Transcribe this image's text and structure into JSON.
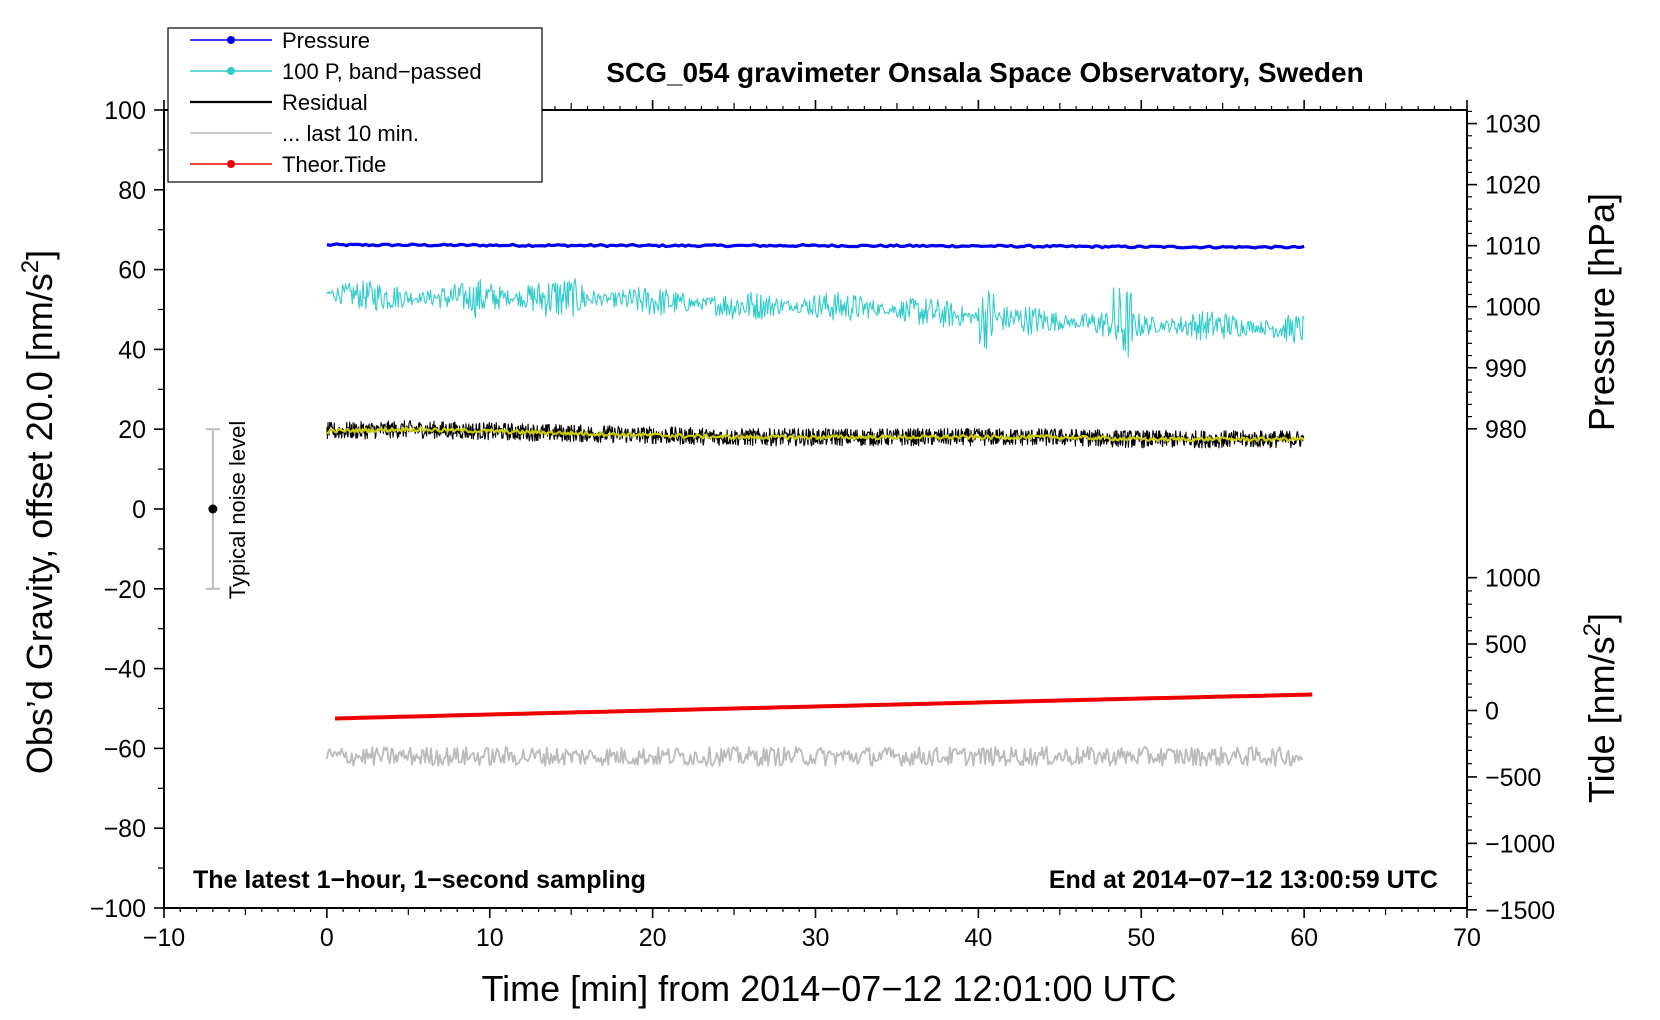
{
  "chart_data": {
    "type": "line",
    "title": "SCG_054 gravimeter Onsala Space Observatory, Sweden",
    "xlabel": "Time [min] from 2014−07−12 12:01:00 UTC",
    "ylabel": "Obs’d Gravity, offset 20.0 [nm/s²]",
    "ylabel_main": "Obs’d Gravity, offset 20.0 [nm/s",
    "ylabel_sup": "2",
    "ylabel_close": "]",
    "xlim": [
      -10,
      70
    ],
    "ylim": [
      -100,
      100
    ],
    "x_ticks": [
      "−10",
      "0",
      "10",
      "20",
      "30",
      "40",
      "50",
      "60",
      "70"
    ],
    "y_ticks": [
      "−100",
      "−80",
      "−60",
      "−40",
      "−20",
      "0",
      "20",
      "40",
      "60",
      "80",
      "100"
    ],
    "pressure_axis": {
      "label": "Pressure [hPa]",
      "ticks": [
        "980",
        "990",
        "1000",
        "1010",
        "1020",
        "1030"
      ],
      "tick_values": [
        980,
        990,
        1000,
        1010,
        1020,
        1030
      ],
      "ref_pressure": 1010,
      "ref_gravity": 66,
      "gravity_per_hpa": 1.53
    },
    "tide_axis": {
      "label": "Tide [nm/s²]",
      "label_main": "Tide [nm/s",
      "label_sup": "2",
      "label_close": "]",
      "ticks": [
        "−1500",
        "−1000",
        "−500",
        "0",
        "500",
        "1000"
      ],
      "tick_values": [
        -1500,
        -1000,
        -500,
        0,
        500,
        1000
      ],
      "ref_tide": 0,
      "ref_gravity": -50.5,
      "gravity_per_nms2": 0.0333
    },
    "legend": {
      "position": "top-left",
      "entries": [
        {
          "label": "Pressure",
          "color": "#0000ee",
          "marker": true
        },
        {
          "label": "100 P, band−passed",
          "color": "#33cccc",
          "marker": true
        },
        {
          "label": "Residual",
          "color": "#000000",
          "marker": false
        },
        {
          "label": "... last 10 min.",
          "color": "#bbbbbb",
          "marker": false
        },
        {
          "label": "Theor.Tide",
          "color": "#ee0000",
          "marker": true
        }
      ]
    },
    "series": [
      {
        "name": "Pressure",
        "color": "#0000ee",
        "x": [
          0,
          10,
          20,
          30,
          40,
          50,
          60
        ],
        "values": [
          66.2,
          66.1,
          66.0,
          66.0,
          65.9,
          65.7,
          65.6
        ]
      },
      {
        "name": "100 P, band−passed",
        "color": "#33cccc",
        "x": [
          0,
          5,
          10,
          15,
          20,
          25,
          30,
          35,
          40,
          45,
          50,
          55,
          60
        ],
        "values": [
          54,
          53,
          53,
          53,
          52,
          51,
          51,
          50,
          48,
          47,
          46,
          46,
          45
        ]
      },
      {
        "name": "Residual",
        "color": "#000000",
        "x": [
          0,
          5,
          10,
          15,
          20,
          25,
          30,
          35,
          40,
          45,
          50,
          55,
          60
        ],
        "values": [
          19.5,
          20,
          19.5,
          19,
          18.5,
          18,
          18,
          18,
          18,
          18,
          17.5,
          17.5,
          17.5
        ]
      },
      {
        "name": "Residual smoothed",
        "color": "#cccc00",
        "x": [
          0,
          5,
          10,
          15,
          20,
          25,
          30,
          35,
          40,
          45,
          50,
          55,
          60
        ],
        "values": [
          19.5,
          20,
          19.5,
          19,
          18.5,
          18,
          18,
          18,
          18,
          18,
          17.5,
          17.5,
          17.5
        ]
      },
      {
        "name": "... last 10 min.",
        "color": "#bbbbbb",
        "x": [
          0,
          10,
          20,
          30,
          40,
          50,
          60
        ],
        "values": [
          -62,
          -62,
          -62,
          -62,
          -62,
          -62,
          -62
        ]
      },
      {
        "name": "Theor.Tide",
        "color": "#ee0000",
        "x": [
          0.5,
          10,
          20,
          30,
          40,
          50,
          60.5
        ],
        "values": [
          -52.5,
          -51.5,
          -50.5,
          -49.5,
          -48.5,
          -47.5,
          -46.5
        ]
      }
    ],
    "noise_bar": {
      "label": "Typical noise level",
      "x": -7,
      "center": 0,
      "low": -20,
      "high": 20
    },
    "annotations": {
      "bottom_left": "The latest 1−hour, 1−second sampling",
      "bottom_right": "End at 2014−07−12 13:00:59 UTC"
    }
  }
}
